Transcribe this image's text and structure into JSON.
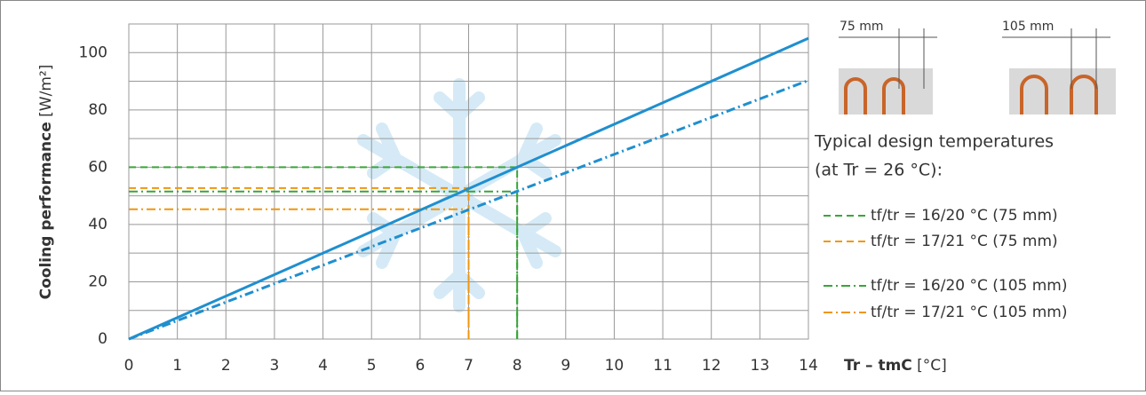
{
  "chart_data": {
    "type": "line",
    "ylabel": "Cooling performance",
    "ylabel_unit": "[W/m²]",
    "xlabel": "Tr – tmC",
    "xlabel_unit": "[°C]",
    "xlim": [
      0,
      14
    ],
    "xticks": [
      0,
      1,
      2,
      3,
      4,
      5,
      6,
      7,
      8,
      9,
      10,
      11,
      12,
      13,
      14
    ],
    "ylim": [
      0,
      110
    ],
    "yticks": [
      0,
      20,
      40,
      60,
      80,
      100
    ],
    "y_minor_ticks": [
      10,
      30,
      50,
      70,
      90,
      110
    ],
    "grid": true,
    "x": [
      0,
      14
    ],
    "curves": [
      {
        "values": [
          0,
          105
        ],
        "color": "#1f8fcf",
        "style": "solid"
      },
      {
        "values": [
          0,
          90.3
        ],
        "color": "#1f8fcf",
        "style": "dashdot"
      }
    ],
    "legend_title": "Typical design temperatures",
    "legend_subtitle": "(at Tr = 26 °C):",
    "series": [
      {
        "name": "tf/tr = 16/20 °C (75 mm)",
        "color": "#3aa53a",
        "style": "dashed",
        "x": 8,
        "y": 60
      },
      {
        "name": "tf/tr = 17/21 °C (75 mm)",
        "color": "#f0960f",
        "style": "dashed",
        "x": 7,
        "y": 52.7
      },
      {
        "name": "tf/tr = 16/20 °C (105 mm)",
        "color": "#3aa53a",
        "style": "dashdot",
        "x": 8,
        "y": 51.5
      },
      {
        "name": "tf/tr = 17/21 °C (105 mm)",
        "color": "#f0960f",
        "style": "dashdot",
        "x": 7,
        "y": 45.3
      }
    ],
    "pipe_labels": [
      "75 mm",
      "105 mm"
    ]
  }
}
